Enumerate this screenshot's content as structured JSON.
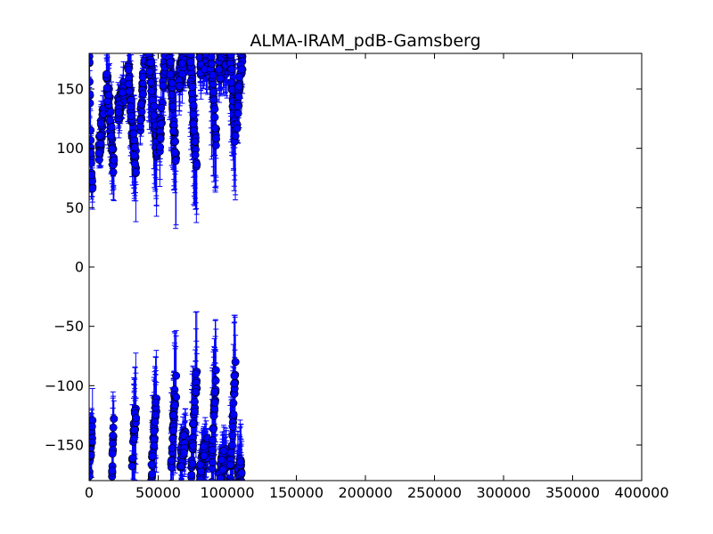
{
  "chart_data": {
    "type": "scatter",
    "title": "ALMA-IRAM_pdB-Gamsberg",
    "xlabel": "",
    "ylabel": "",
    "xlim": [
      0,
      400000
    ],
    "ylim": [
      -180,
      180
    ],
    "x_ticks": [
      0,
      50000,
      100000,
      150000,
      200000,
      250000,
      300000,
      350000,
      400000
    ],
    "x_tick_labels": [
      "0",
      "50000",
      "100000",
      "150000",
      "200000",
      "250000",
      "300000",
      "350000",
      "400000"
    ],
    "y_ticks": [
      -150,
      -100,
      -50,
      0,
      50,
      100,
      150
    ],
    "y_tick_labels": [
      "−150",
      "−100",
      "−50",
      "0",
      "50",
      "100",
      "150"
    ],
    "grid": false,
    "legend": "none",
    "marker": "circle",
    "errorbars": true,
    "colors": {
      "marker_fill": "#0000ff",
      "marker_edge": "#000000",
      "errorbar": "#0000ff"
    },
    "scans": [
      {
        "x_start": 0,
        "x_end": 2500,
        "upper": [
          [
            0,
            175
          ],
          [
            600,
            140
          ],
          [
            1200,
            100
          ],
          [
            1800,
            80
          ],
          [
            2500,
            68
          ]
        ],
        "lower": [
          [
            0,
            -170
          ],
          [
            1200,
            -150
          ],
          [
            2500,
            -137
          ]
        ],
        "err_hi": 25,
        "err_lo": 25
      },
      {
        "x_start": 7000,
        "x_end": 10500,
        "upper": [
          [
            7000,
            97
          ],
          [
            8500,
            112
          ],
          [
            10500,
            130
          ]
        ],
        "lower": [],
        "err_hi": 15,
        "err_lo": 15
      },
      {
        "x_start": 12500,
        "x_end": 18000,
        "upper": [
          [
            12500,
            160
          ],
          [
            14000,
            145
          ],
          [
            15500,
            125
          ],
          [
            16500,
            100
          ],
          [
            18000,
            82
          ]
        ],
        "lower": [
          [
            16500,
            -175
          ],
          [
            17000,
            -155
          ],
          [
            17500,
            -140
          ],
          [
            18000,
            -128
          ]
        ],
        "err_hi": 35,
        "err_lo": 35
      },
      {
        "x_start": 21000,
        "x_end": 25000,
        "upper": [
          [
            21000,
            132
          ],
          [
            23000,
            140
          ],
          [
            25000,
            150
          ]
        ],
        "lower": [],
        "err_hi": 15,
        "err_lo": 15
      },
      {
        "x_start": 28000,
        "x_end": 34000,
        "upper": [
          [
            28000,
            175
          ],
          [
            29500,
            150
          ],
          [
            31000,
            120
          ],
          [
            32500,
            98
          ],
          [
            34000,
            88
          ]
        ],
        "lower": [
          [
            31000,
            -175
          ],
          [
            32000,
            -148
          ],
          [
            33000,
            -130
          ],
          [
            34000,
            -120
          ]
        ],
        "err_hi": 40,
        "err_lo": 40
      },
      {
        "x_start": 37000,
        "x_end": 40000,
        "upper": [
          [
            37000,
            120
          ],
          [
            38500,
            145
          ],
          [
            40000,
            175
          ]
        ],
        "lower": [],
        "err_hi": 20,
        "err_lo": 20
      },
      {
        "x_start": 43000,
        "x_end": 49000,
        "upper": [
          [
            43000,
            178
          ],
          [
            45000,
            160
          ],
          [
            47000,
            130
          ],
          [
            49000,
            95
          ]
        ],
        "lower": [
          [
            45000,
            -178
          ],
          [
            46500,
            -150
          ],
          [
            48000,
            -125
          ],
          [
            49000,
            -110
          ]
        ],
        "err_hi": 45,
        "err_lo": 45
      },
      {
        "x_start": 51000,
        "x_end": 55000,
        "upper": [
          [
            51000,
            105
          ],
          [
            53000,
            140
          ],
          [
            55000,
            178
          ]
        ],
        "lower": [],
        "err_hi": 25,
        "err_lo": 25
      },
      {
        "x_start": 58000,
        "x_end": 63000,
        "upper": [
          [
            58000,
            178
          ],
          [
            59500,
            160
          ],
          [
            61000,
            125
          ],
          [
            63000,
            85
          ]
        ],
        "lower": [
          [
            59000,
            -178
          ],
          [
            60500,
            -140
          ],
          [
            62000,
            -110
          ],
          [
            63000,
            -100
          ]
        ],
        "err_hi": 50,
        "err_lo": 50
      },
      {
        "x_start": 65000,
        "x_end": 70000,
        "upper": [
          [
            65000,
            160
          ],
          [
            67500,
            170
          ],
          [
            70000,
            178
          ]
        ],
        "lower": [
          [
            66000,
            -165
          ],
          [
            68000,
            -150
          ],
          [
            70000,
            -145
          ]
        ],
        "err_hi": 20,
        "err_lo": 20
      },
      {
        "x_start": 73000,
        "x_end": 78000,
        "upper": [
          [
            73000,
            178
          ],
          [
            74500,
            150
          ],
          [
            76000,
            115
          ],
          [
            78000,
            90
          ]
        ],
        "lower": [
          [
            74000,
            -178
          ],
          [
            75500,
            -130
          ],
          [
            77000,
            -100
          ],
          [
            78000,
            -92
          ]
        ],
        "err_hi": 55,
        "err_lo": 55
      },
      {
        "x_start": 80000,
        "x_end": 86000,
        "upper": [
          [
            80000,
            170
          ],
          [
            83000,
            178
          ],
          [
            86000,
            172
          ]
        ],
        "lower": [
          [
            80000,
            -178
          ],
          [
            83000,
            -160
          ],
          [
            86000,
            -150
          ]
        ],
        "err_hi": 20,
        "err_lo": 20
      },
      {
        "x_start": 88000,
        "x_end": 92000,
        "upper": [
          [
            88000,
            175
          ],
          [
            89500,
            150
          ],
          [
            91000,
            120
          ],
          [
            92000,
            105
          ]
        ],
        "lower": [
          [
            88500,
            -178
          ],
          [
            90000,
            -135
          ],
          [
            91500,
            -100
          ],
          [
            92000,
            -92
          ]
        ],
        "err_hi": 60,
        "err_lo": 60
      },
      {
        "x_start": 94000,
        "x_end": 100000,
        "upper": [
          [
            94000,
            165
          ],
          [
            97000,
            178
          ],
          [
            100000,
            170
          ]
        ],
        "lower": [
          [
            94000,
            -178
          ],
          [
            97000,
            -165
          ],
          [
            100000,
            -160
          ]
        ],
        "err_hi": 20,
        "err_lo": 20
      },
      {
        "x_start": 102000,
        "x_end": 106000,
        "upper": [
          [
            102000,
            178
          ],
          [
            103500,
            155
          ],
          [
            105000,
            120
          ],
          [
            106000,
            105
          ]
        ],
        "lower": [
          [
            102000,
            -178
          ],
          [
            103500,
            -150
          ],
          [
            105000,
            -100
          ],
          [
            106000,
            -88
          ]
        ],
        "err_hi": 50,
        "err_lo": 50
      },
      {
        "x_start": 107000,
        "x_end": 111000,
        "upper": [
          [
            107000,
            125
          ],
          [
            109000,
            155
          ],
          [
            111000,
            178
          ]
        ],
        "lower": [
          [
            107000,
            -178
          ],
          [
            109000,
            -170
          ],
          [
            111000,
            -175
          ]
        ],
        "err_hi": 30,
        "err_lo": 30
      }
    ]
  }
}
